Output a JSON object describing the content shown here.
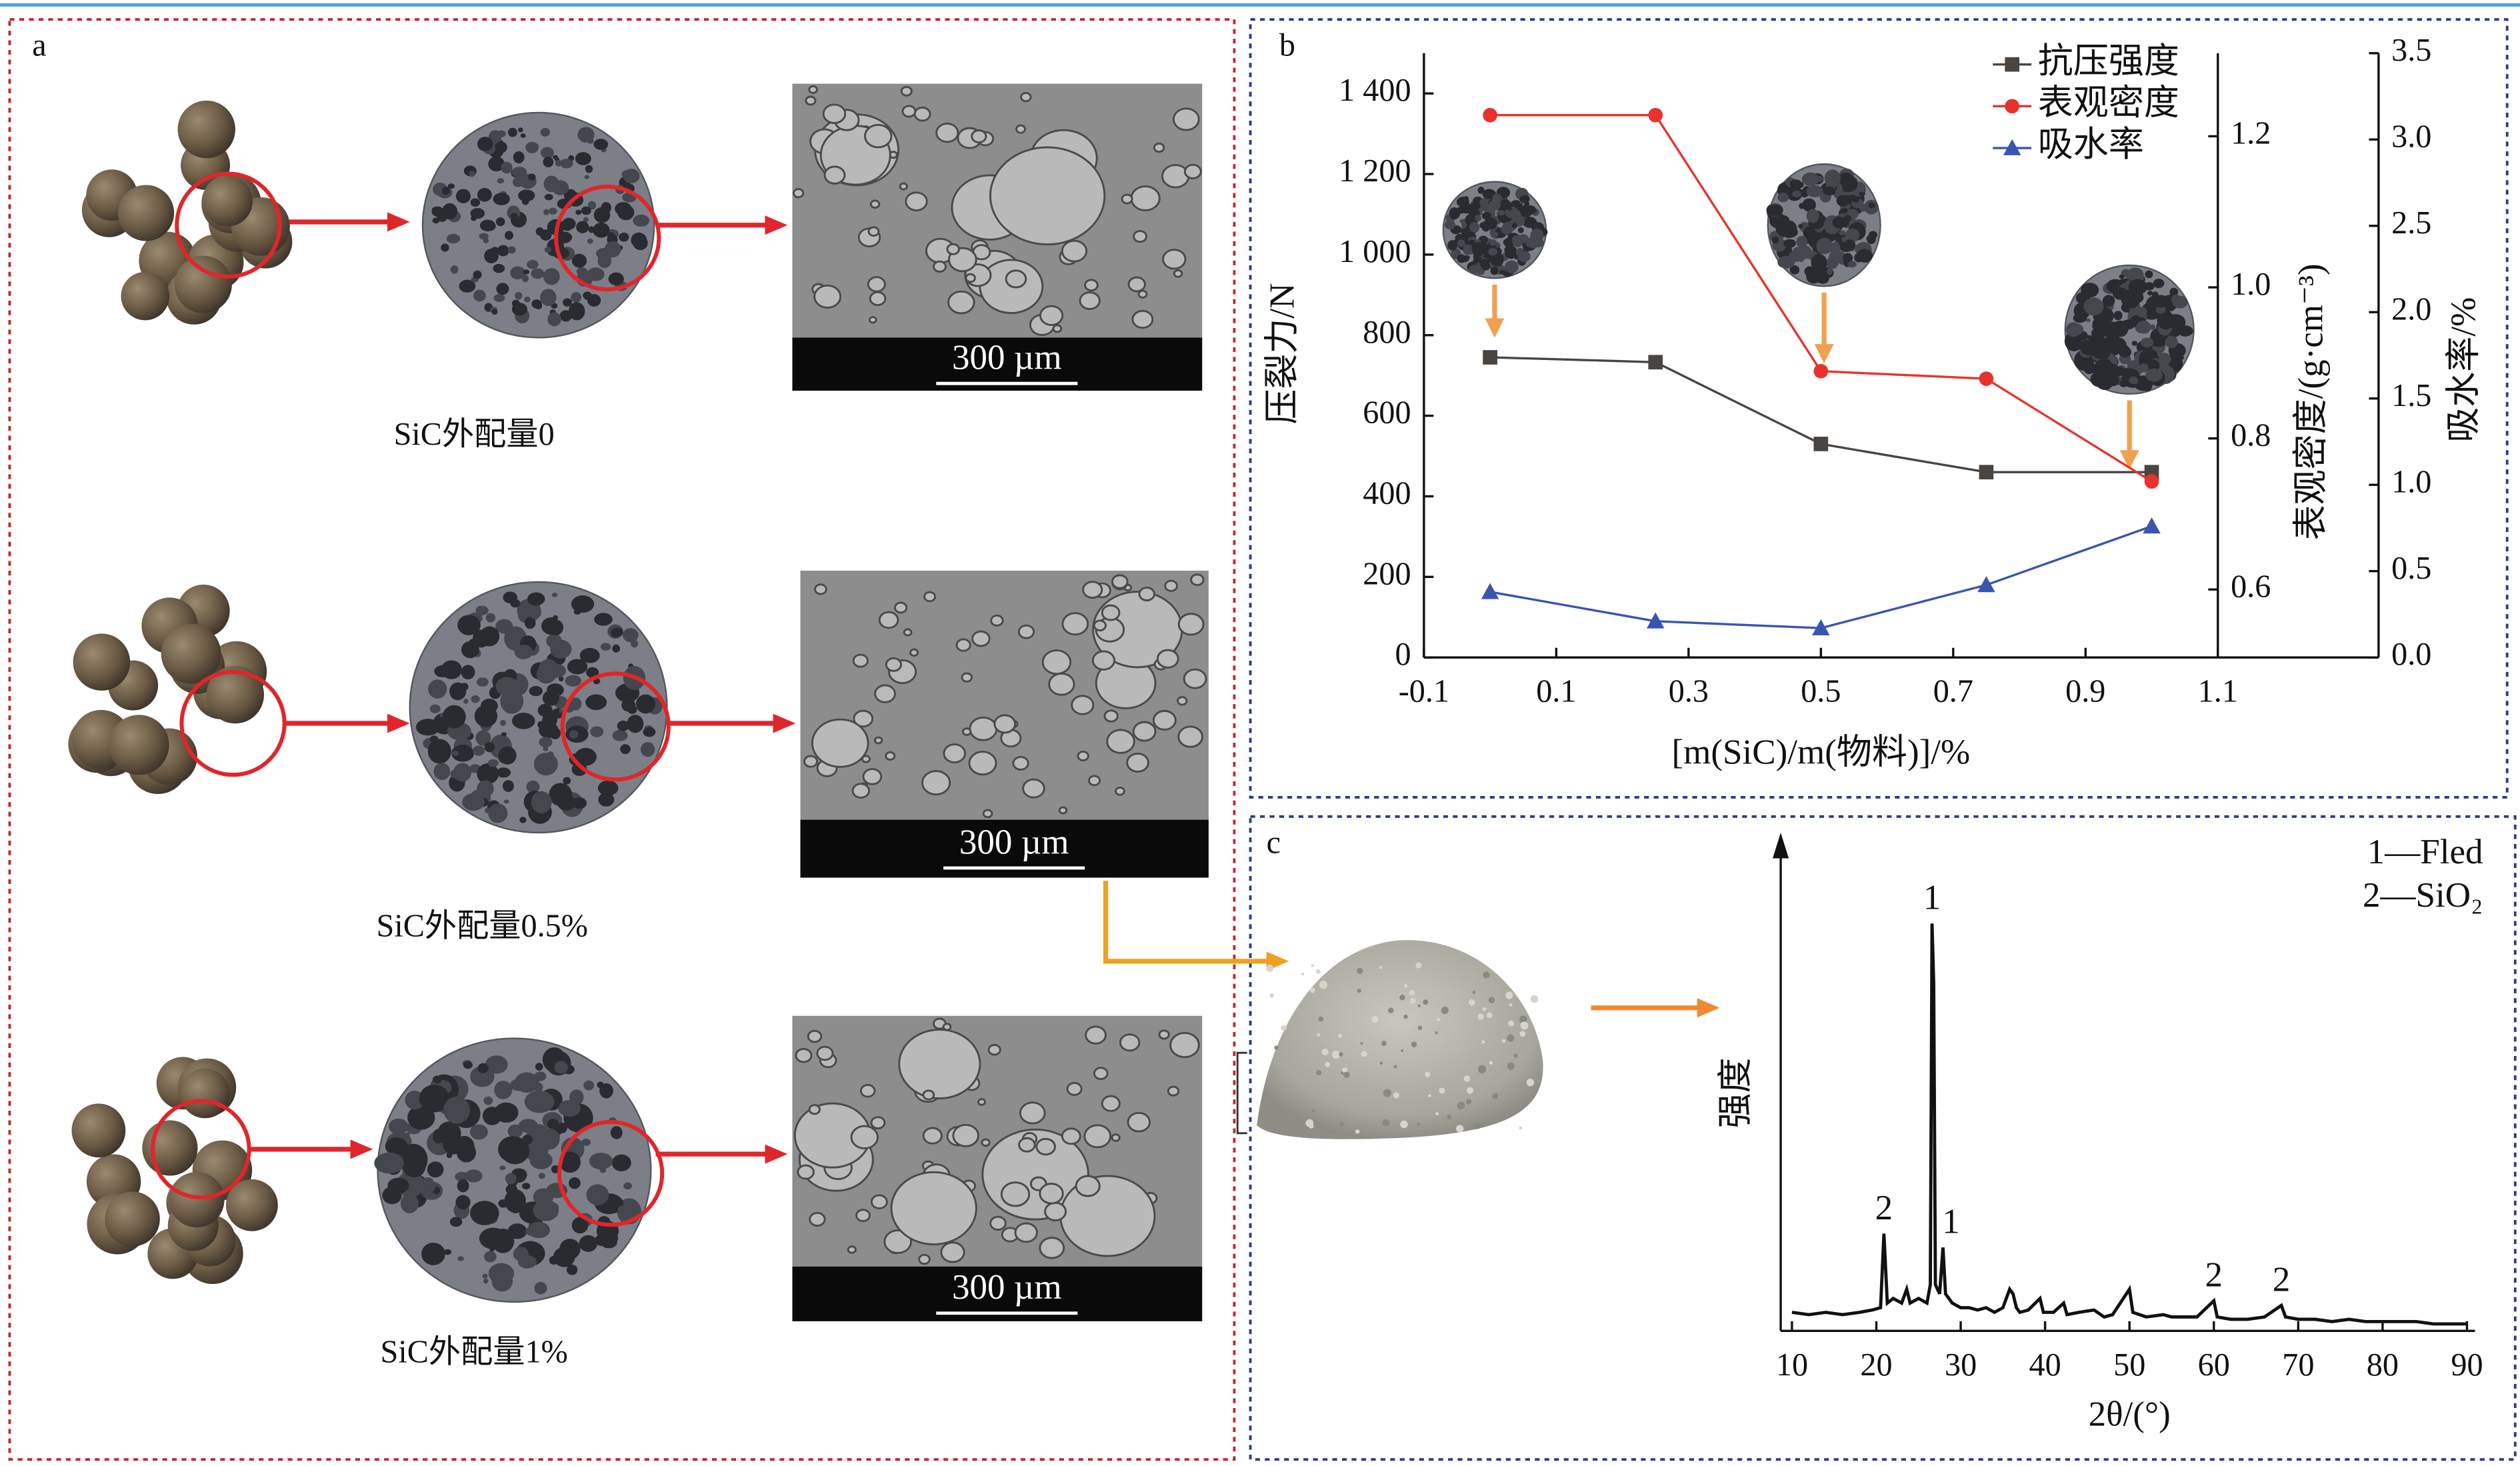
{
  "panel_a": {
    "label": "a",
    "rows": [
      {
        "caption": "SiC外配量0",
        "scale_bar": "300 µm"
      },
      {
        "caption": "SiC外配量0.5%",
        "scale_bar": "300 µm"
      },
      {
        "caption": "SiC外配量1%",
        "scale_bar": "300 µm"
      }
    ]
  },
  "chart_data": [
    {
      "type": "line",
      "panel_label": "b",
      "x_label": "[m(SiC)/m(物料)]/%",
      "y_label": "压裂力/N",
      "y2_label": "表观密度/(g·cm⁻³)",
      "y3_label": "吸水率/%",
      "x": [
        0,
        0.25,
        0.5,
        0.75,
        1.0
      ],
      "xlim": [
        -0.1,
        1.1
      ],
      "xticks": [
        -0.1,
        0.1,
        0.3,
        0.5,
        0.7,
        0.9,
        1.1
      ],
      "ylim": [
        0,
        1500
      ],
      "yticks": [
        0,
        200,
        400,
        600,
        800,
        {
          "value": 1000,
          "label": "1 000"
        },
        {
          "value": 1200,
          "label": "1 200"
        },
        {
          "value": 1400,
          "label": "1 400"
        }
      ],
      "y2lim": [
        0.51,
        1.31
      ],
      "y2ticks": [
        0.6,
        0.8,
        {
          "value": 1,
          "label": "1.0"
        },
        1.2
      ],
      "y3lim": [
        0,
        3.5
      ],
      "y3ticks": [
        {
          "value": 0,
          "label": "0.0"
        },
        0.5,
        {
          "value": 1,
          "label": "1.0"
        },
        1.5,
        {
          "value": 2,
          "label": "2.0"
        },
        2.5,
        {
          "value": 3,
          "label": "3.0"
        },
        3.5
      ],
      "legend_position": "upper right",
      "series": [
        {
          "name": "抗压强度",
          "color": "#4a4540",
          "marker": "square",
          "axis": "y",
          "values": [
            745,
            733,
            530,
            460,
            460
          ]
        },
        {
          "name": "表观密度",
          "color": "#e8322d",
          "marker": "circle",
          "axis": "y2",
          "values": [
            1.228,
            1.228,
            0.889,
            0.879,
            0.743
          ]
        },
        {
          "name": "吸水率",
          "color": "#3a55b0",
          "marker": "triangle",
          "axis": "y3",
          "values": [
            0.38,
            0.21,
            0.17,
            0.42,
            0.76
          ]
        }
      ]
    },
    {
      "type": "line",
      "panel_label": "c",
      "x_label": "2θ/(°)",
      "y_label": "强度",
      "legend": [
        "1—Fled",
        "2—SiO₂"
      ],
      "xlim": [
        10,
        90
      ],
      "xticks": [
        10,
        20,
        30,
        40,
        50,
        60,
        70,
        80,
        90
      ],
      "ylim": [
        0,
        100
      ],
      "x": [
        10,
        12,
        14,
        16,
        18,
        19.5,
        20.5,
        20.9,
        21.3,
        22,
        23,
        23.6,
        24,
        25,
        26,
        26.4,
        26.6,
        26.8,
        27.0,
        27.5,
        27.9,
        28.2,
        29,
        30,
        31,
        32,
        33,
        34,
        35,
        35.8,
        36.2,
        36.6,
        37,
        38,
        39.4,
        39.8,
        41,
        42.2,
        42.6,
        44,
        45.8,
        47,
        48,
        50,
        50.4,
        52,
        54,
        55,
        56,
        58,
        60,
        60.4,
        62,
        64,
        66,
        68,
        68.5,
        70,
        72,
        74,
        76,
        78,
        80,
        82,
        84,
        86,
        88,
        90
      ],
      "series": [
        {
          "color": "#111111",
          "values": [
            4,
            3.5,
            4,
            3.5,
            4,
            4.5,
            5,
            21,
            6,
            7,
            6,
            9,
            6,
            7,
            6,
            10,
            88,
            75,
            10,
            8,
            18,
            8,
            6,
            5,
            5,
            4.5,
            5,
            4,
            5,
            9,
            8,
            5,
            4,
            4.5,
            7,
            4,
            4,
            6,
            3.5,
            4,
            4.5,
            3,
            3.5,
            9,
            4,
            3,
            3.5,
            3,
            3,
            3,
            6.5,
            3,
            2.5,
            2.5,
            3,
            5.5,
            3,
            2.5,
            2.5,
            2,
            2.5,
            2,
            2,
            2,
            2,
            1.5,
            1.5,
            1.5
          ]
        }
      ],
      "annotations": [
        {
          "text": "2",
          "x": 20.9
        },
        {
          "text": "1",
          "x": 26.6
        },
        {
          "text": "1",
          "x": 27.9
        },
        {
          "text": "2",
          "x": 60
        },
        {
          "text": "2",
          "x": 68
        }
      ]
    }
  ]
}
